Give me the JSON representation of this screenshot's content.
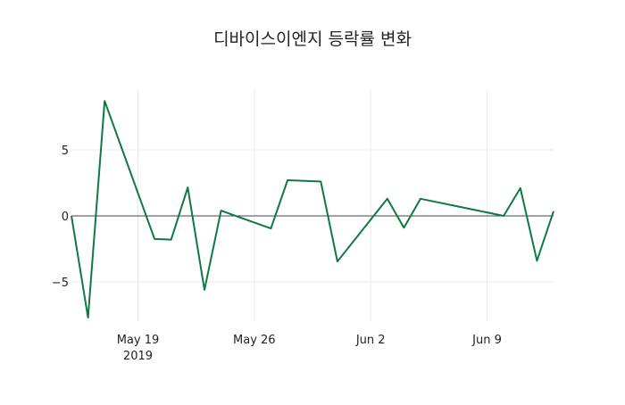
{
  "chart_data": {
    "type": "line",
    "title": "디바이스이엔지 등락률 변화",
    "xlabel": "",
    "ylabel": "",
    "x": [
      "2019-05-15",
      "2019-05-16",
      "2019-05-17",
      "2019-05-20",
      "2019-05-21",
      "2019-05-22",
      "2019-05-23",
      "2019-05-24",
      "2019-05-27",
      "2019-05-28",
      "2019-05-30",
      "2019-05-31",
      "2019-06-03",
      "2019-06-04",
      "2019-06-05",
      "2019-06-10",
      "2019-06-11",
      "2019-06-12",
      "2019-06-13"
    ],
    "series": [
      {
        "name": "등락률",
        "color": "#0e7a43",
        "values": [
          0,
          -7.7,
          8.7,
          -1.75,
          -1.8,
          2.15,
          -5.6,
          0.4,
          -0.95,
          2.7,
          2.6,
          -3.45,
          1.3,
          -0.9,
          1.3,
          0.0,
          2.1,
          -3.4,
          0.35
        ]
      }
    ],
    "xlim": [
      "2019-05-15",
      "2019-06-13"
    ],
    "ylim": [
      -8.1,
      9.5
    ],
    "xticks": [
      {
        "date": "2019-05-19",
        "label": "May 19",
        "sublabel": "2019"
      },
      {
        "date": "2019-05-26",
        "label": "May 26"
      },
      {
        "date": "2019-06-02",
        "label": "Jun 2"
      },
      {
        "date": "2019-06-09",
        "label": "Jun 9"
      }
    ],
    "yticks": [
      -5,
      0,
      5
    ],
    "grid": true,
    "legend": "none"
  }
}
